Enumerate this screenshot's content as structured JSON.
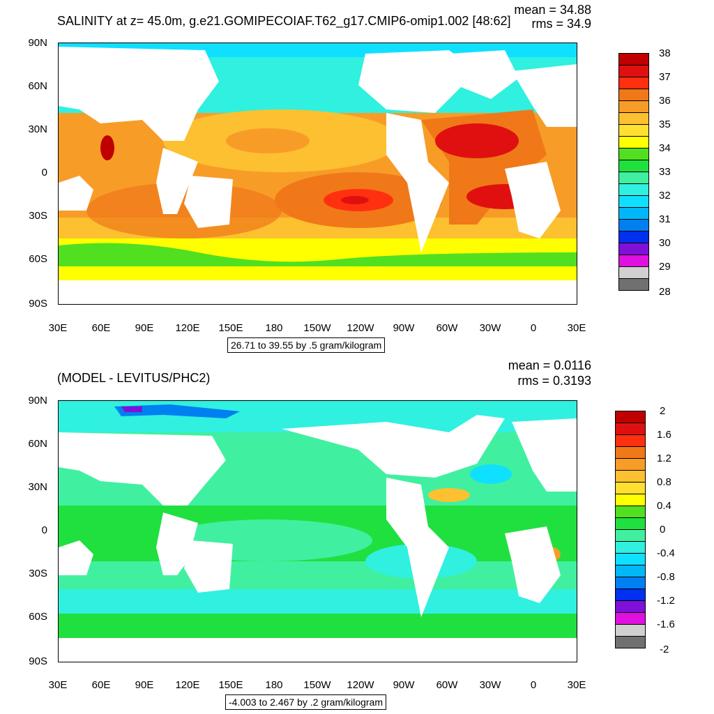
{
  "top": {
    "title": "SALINITY at z=  45.0m, g.e21.GOMIPECOIAF.T62_g17.CMIP6-omip1.002 [48:62]",
    "mean": "mean = 34.88",
    "rms": "rms = 34.9",
    "range": "26.71 to 39.55 by .5 gram/kilogram",
    "colorbar_labels": [
      "38",
      "37",
      "36",
      "35",
      "34",
      "33",
      "32",
      "31",
      "30",
      "29",
      "28"
    ],
    "colorbar_colors": [
      "#c00000",
      "#e01010",
      "#ff3010",
      "#f07818",
      "#f89c28",
      "#fcc030",
      "#ffe030",
      "#ffff00",
      "#50e020",
      "#20e040",
      "#40f0a0",
      "#30f0e0",
      "#10e0ff",
      "#00b8f8",
      "#0080f0",
      "#0030f0",
      "#8010d8",
      "#e010e0",
      "#d0d0d0",
      "#707070"
    ]
  },
  "bottom": {
    "title": "(MODEL - LEVITUS/PHC2)",
    "mean": "mean = 0.0116",
    "rms": "rms = 0.3193",
    "range": "-4.003 to 2.467 by .2 gram/kilogram",
    "colorbar_labels": [
      "2",
      "1.6",
      "1.2",
      "0.8",
      "0.4",
      "0",
      "-0.4",
      "-0.8",
      "-1.2",
      "-1.6",
      "-2"
    ],
    "colorbar_colors": [
      "#c00000",
      "#e01010",
      "#ff3010",
      "#f07818",
      "#f89c28",
      "#fcc030",
      "#ffe030",
      "#ffff00",
      "#50e020",
      "#20e040",
      "#40f0a0",
      "#30f0e0",
      "#10e0ff",
      "#00b8f8",
      "#0080f0",
      "#0030f0",
      "#8010d8",
      "#e010e0",
      "#d0d0d0",
      "#707070"
    ]
  },
  "axes": {
    "lat_labels": [
      "90N",
      "60N",
      "30N",
      "0",
      "30S",
      "60S",
      "90S"
    ],
    "lon_labels": [
      "30E",
      "60E",
      "90E",
      "120E",
      "150E",
      "180",
      "150W",
      "120W",
      "90W",
      "60W",
      "30W",
      "0",
      "30E"
    ]
  }
}
